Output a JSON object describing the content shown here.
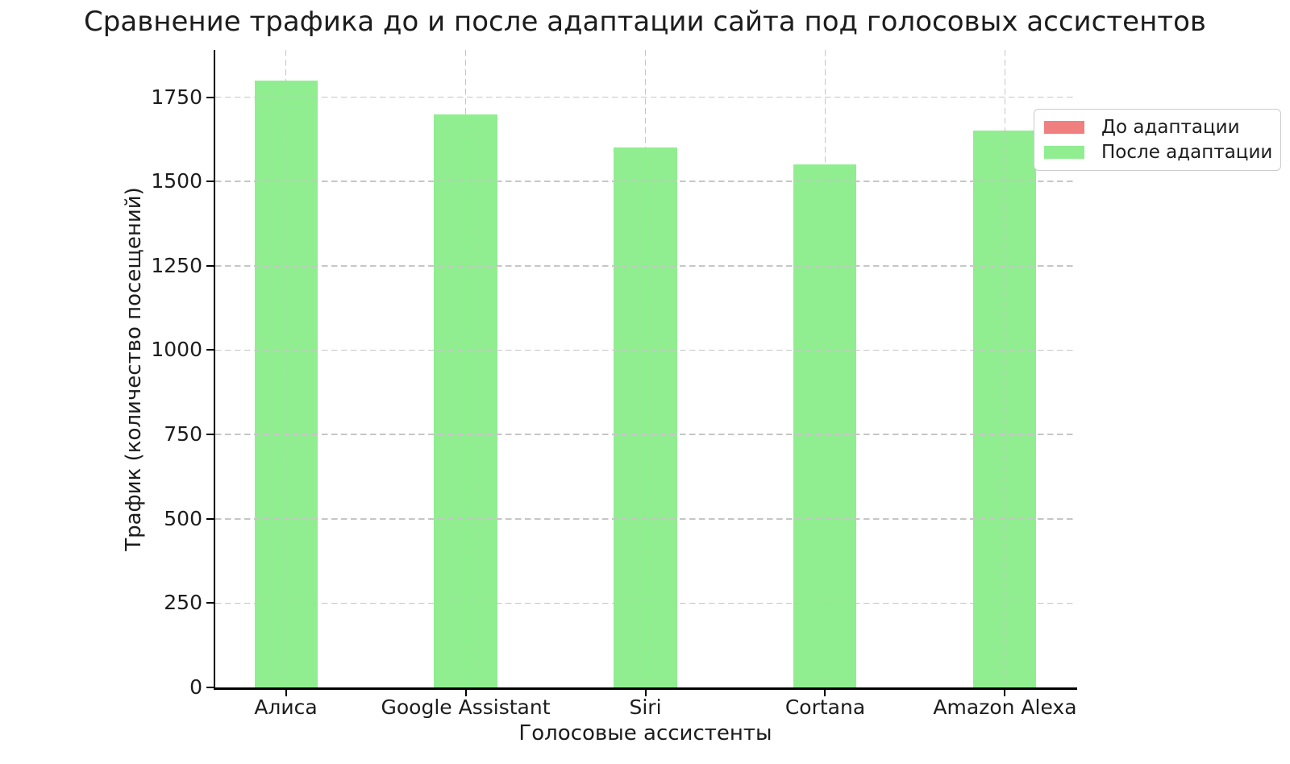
{
  "chart_data": {
    "type": "bar",
    "title": "Сравнение трафика до и после адаптации сайта под голосовых ассистентов",
    "xlabel": "Голосовые ассистенты",
    "ylabel": "Трафик (количество посещений)",
    "categories": [
      "Алиса",
      "Google Assistant",
      "Siri",
      "Cortana",
      "Amazon Alexa"
    ],
    "series": [
      {
        "name": "До адаптации",
        "color": "#f08080",
        "values": null
      },
      {
        "name": "После адаптации",
        "color": "#90ee90",
        "values": [
          1800,
          1700,
          1600,
          1550,
          1650
        ]
      }
    ],
    "ylim": [
      0,
      1890
    ],
    "yticks": [
      0,
      250,
      500,
      750,
      1000,
      1250,
      1500,
      1750
    ],
    "xlim": [
      -0.3925,
      4.3925
    ],
    "bar_width": 0.35,
    "grid": {
      "visible": true,
      "style": "dashed",
      "axis": "both",
      "color": "#c6c6c6"
    },
    "legend": {
      "position": "upper right"
    }
  },
  "colors": {
    "background": "#ffffff",
    "spine": "#000000",
    "text": "#1c1c1c"
  }
}
